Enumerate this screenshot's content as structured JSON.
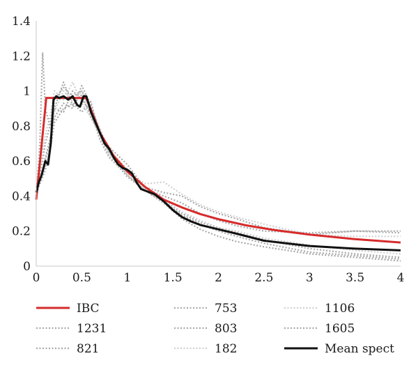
{
  "chart_data": {
    "type": "line",
    "title": "",
    "xlabel": "",
    "ylabel": "",
    "xlim": [
      0,
      4
    ],
    "ylim": [
      0,
      1.4
    ],
    "x_ticks": [
      "0",
      "0.5",
      "1",
      "1.5",
      "2",
      "2.5",
      "3",
      "3.5",
      "4"
    ],
    "y_ticks": [
      "0",
      "0.2",
      "0.4",
      "0.6",
      "0.8",
      "1",
      "1.2",
      "1.4"
    ],
    "grid": false,
    "legend_position": "bottom",
    "series": [
      {
        "name": "IBC",
        "color": "#d62b2b",
        "style": "solid",
        "x": [
          0,
          0.11,
          0.55,
          0.7,
          0.85,
          1.0,
          1.2,
          1.4,
          1.6,
          1.8,
          2.0,
          2.3,
          2.6,
          3.0,
          3.5,
          4.0
        ],
        "y": [
          0.38,
          0.96,
          0.96,
          0.76,
          0.63,
          0.54,
          0.45,
          0.38,
          0.335,
          0.297,
          0.268,
          0.233,
          0.207,
          0.18,
          0.154,
          0.135
        ]
      },
      {
        "name": "753",
        "color": "#a8a8a8",
        "style": "dotted",
        "x": [
          0,
          0.05,
          0.1,
          0.15,
          0.2,
          0.3,
          0.4,
          0.5,
          0.6,
          0.7,
          0.8,
          1.0,
          1.2,
          1.4,
          1.6,
          1.8,
          2.0,
          2.2,
          2.5,
          3.0,
          3.5,
          4.0
        ],
        "y": [
          0.4,
          0.55,
          0.7,
          0.8,
          0.95,
          1.02,
          0.97,
          1.0,
          0.9,
          0.78,
          0.66,
          0.55,
          0.45,
          0.42,
          0.4,
          0.34,
          0.3,
          0.27,
          0.22,
          0.18,
          0.2,
          0.19
        ]
      },
      {
        "name": "1106",
        "color": "#cfcfcf",
        "style": "dotted",
        "x": [
          0,
          0.05,
          0.1,
          0.15,
          0.2,
          0.3,
          0.4,
          0.5,
          0.6,
          0.7,
          0.8,
          1.0,
          1.2,
          1.4,
          1.6,
          1.8,
          2.0,
          2.2,
          2.5,
          3.0,
          3.5,
          4.0
        ],
        "y": [
          0.38,
          0.6,
          0.75,
          0.85,
          1.0,
          0.95,
          1.05,
          0.93,
          0.85,
          0.75,
          0.64,
          0.53,
          0.47,
          0.48,
          0.41,
          0.35,
          0.31,
          0.28,
          0.24,
          0.18,
          0.17,
          0.17
        ]
      },
      {
        "name": "1231",
        "color": "#a8a8a8",
        "style": "dotted",
        "x": [
          0,
          0.04,
          0.07,
          0.1,
          0.15,
          0.2,
          0.3,
          0.4,
          0.5,
          0.6,
          0.7,
          0.8,
          1.0,
          1.2,
          1.4,
          1.6,
          1.8,
          2.0,
          2.2,
          2.5,
          3.0,
          3.5,
          4.0
        ],
        "y": [
          0.38,
          0.7,
          1.22,
          0.9,
          0.8,
          0.9,
          1.05,
          0.92,
          0.98,
          0.85,
          0.76,
          0.68,
          0.58,
          0.44,
          0.4,
          0.36,
          0.3,
          0.26,
          0.23,
          0.2,
          0.19,
          0.2,
          0.2
        ]
      },
      {
        "name": "803",
        "color": "#a8a8a8",
        "style": "dotted",
        "x": [
          0,
          0.05,
          0.1,
          0.15,
          0.2,
          0.3,
          0.4,
          0.5,
          0.6,
          0.7,
          0.8,
          1.0,
          1.2,
          1.4,
          1.6,
          1.8,
          2.0,
          2.2,
          2.5,
          3.0,
          3.5,
          4.0
        ],
        "y": [
          0.45,
          0.52,
          0.6,
          0.7,
          0.9,
          0.88,
          1.0,
          0.95,
          0.88,
          0.72,
          0.62,
          0.52,
          0.44,
          0.38,
          0.3,
          0.25,
          0.22,
          0.19,
          0.15,
          0.1,
          0.07,
          0.05
        ]
      },
      {
        "name": "1605",
        "color": "#a8a8a8",
        "style": "dotted",
        "x": [
          0,
          0.05,
          0.1,
          0.15,
          0.2,
          0.3,
          0.4,
          0.5,
          0.6,
          0.7,
          0.8,
          1.0,
          1.2,
          1.4,
          1.6,
          1.8,
          2.0,
          2.2,
          2.5,
          3.0,
          3.5,
          4.0
        ],
        "y": [
          0.4,
          0.5,
          0.62,
          0.72,
          0.85,
          0.93,
          0.9,
          1.03,
          0.92,
          0.77,
          0.65,
          0.52,
          0.43,
          0.37,
          0.29,
          0.24,
          0.2,
          0.17,
          0.13,
          0.08,
          0.06,
          0.04
        ]
      },
      {
        "name": "821",
        "color": "#a8a8a8",
        "style": "dotted",
        "x": [
          0,
          0.05,
          0.1,
          0.15,
          0.2,
          0.3,
          0.4,
          0.5,
          0.6,
          0.7,
          0.8,
          1.0,
          1.2,
          1.4,
          1.6,
          1.8,
          2.0,
          2.2,
          2.5,
          3.0,
          3.5,
          4.0
        ],
        "y": [
          0.42,
          0.48,
          0.55,
          0.66,
          0.82,
          0.9,
          0.93,
          0.88,
          0.94,
          0.74,
          0.63,
          0.51,
          0.43,
          0.36,
          0.27,
          0.21,
          0.17,
          0.14,
          0.11,
          0.07,
          0.05,
          0.03
        ]
      },
      {
        "name": "182",
        "color": "#cfcfcf",
        "style": "dotted",
        "x": [
          0,
          0.05,
          0.1,
          0.15,
          0.2,
          0.3,
          0.4,
          0.5,
          0.6,
          0.7,
          0.8,
          1.0,
          1.2,
          1.4,
          1.6,
          1.8,
          2.0,
          2.2,
          2.5,
          3.0,
          3.5,
          4.0
        ],
        "y": [
          0.45,
          0.5,
          0.58,
          0.68,
          0.88,
          1.0,
          0.94,
          1.0,
          0.88,
          0.74,
          0.63,
          0.52,
          0.44,
          0.38,
          0.31,
          0.26,
          0.22,
          0.2,
          0.16,
          0.12,
          0.09,
          0.07
        ]
      },
      {
        "name": "Mean spect",
        "color": "#111111",
        "style": "solid",
        "x": [
          0,
          0.03,
          0.06,
          0.1,
          0.13,
          0.16,
          0.19,
          0.22,
          0.25,
          0.3,
          0.35,
          0.4,
          0.45,
          0.48,
          0.52,
          0.55,
          0.58,
          0.6,
          0.65,
          0.7,
          0.75,
          0.8,
          0.85,
          0.9,
          0.95,
          1.0,
          1.05,
          1.1,
          1.15,
          1.2,
          1.3,
          1.4,
          1.5,
          1.6,
          1.7,
          1.8,
          2.0,
          2.2,
          2.5,
          3.0,
          3.5,
          4.0
        ],
        "y": [
          0.42,
          0.48,
          0.52,
          0.6,
          0.58,
          0.7,
          0.95,
          0.97,
          0.96,
          0.97,
          0.95,
          0.97,
          0.92,
          0.91,
          0.97,
          0.97,
          0.92,
          0.88,
          0.82,
          0.76,
          0.7,
          0.67,
          0.62,
          0.58,
          0.56,
          0.55,
          0.53,
          0.48,
          0.44,
          0.43,
          0.41,
          0.37,
          0.32,
          0.28,
          0.255,
          0.235,
          0.21,
          0.185,
          0.145,
          0.115,
          0.1,
          0.09
        ]
      }
    ],
    "legend_order": [
      "IBC",
      "753",
      "1106",
      "1231",
      "803",
      "1605",
      "821",
      "182",
      "Mean spect"
    ]
  }
}
